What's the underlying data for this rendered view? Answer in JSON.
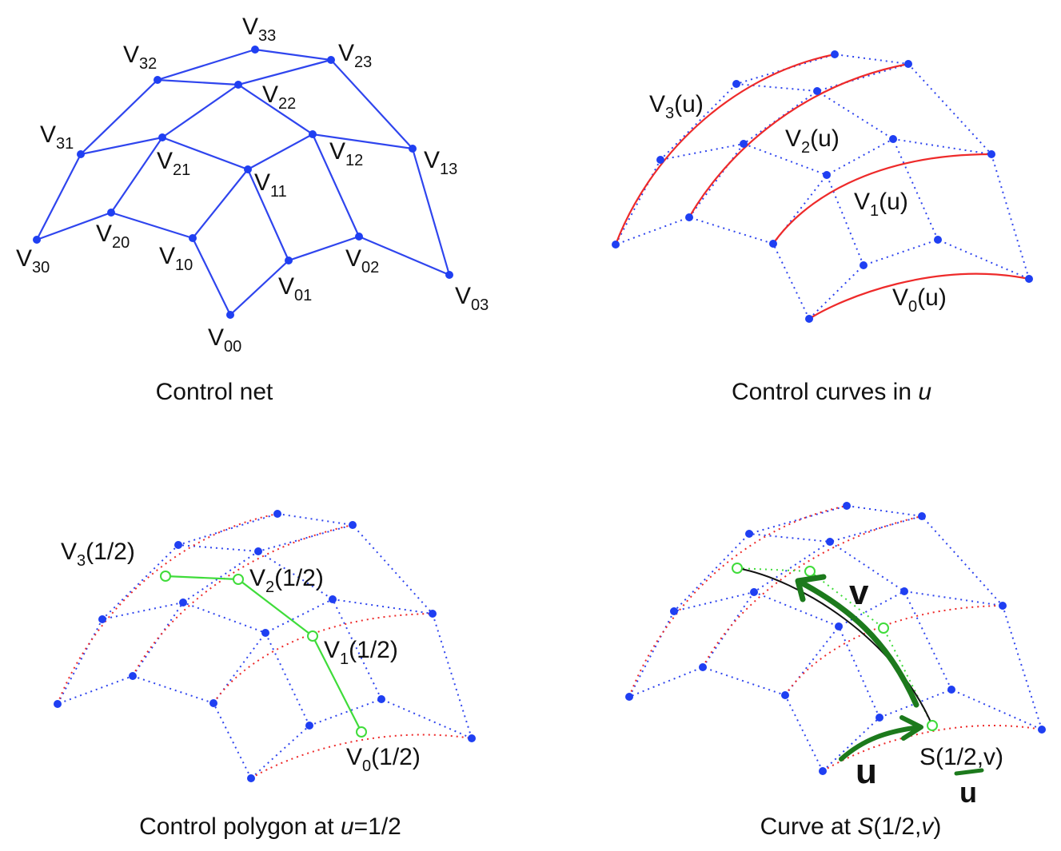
{
  "panels": {
    "control_net": {
      "caption": "Control net",
      "labels": {
        "V00": {
          "base": "V",
          "sub": "00"
        },
        "V01": {
          "base": "V",
          "sub": "01"
        },
        "V02": {
          "base": "V",
          "sub": "02"
        },
        "V03": {
          "base": "V",
          "sub": "03"
        },
        "V10": {
          "base": "V",
          "sub": "10"
        },
        "V11": {
          "base": "V",
          "sub": "11"
        },
        "V12": {
          "base": "V",
          "sub": "12"
        },
        "V13": {
          "base": "V",
          "sub": "13"
        },
        "V20": {
          "base": "V",
          "sub": "20"
        },
        "V21": {
          "base": "V",
          "sub": "21"
        },
        "V22": {
          "base": "V",
          "sub": "22"
        },
        "V23": {
          "base": "V",
          "sub": "23"
        },
        "V30": {
          "base": "V",
          "sub": "30"
        },
        "V31": {
          "base": "V",
          "sub": "31"
        },
        "V32": {
          "base": "V",
          "sub": "32"
        },
        "V33": {
          "base": "V",
          "sub": "33"
        }
      }
    },
    "control_curves": {
      "caption_text": "Control curves in ",
      "caption_var": "u",
      "labels": {
        "V3u": {
          "base": "V",
          "sub": "3",
          "rest": "(u)"
        },
        "V2u": {
          "base": "V",
          "sub": "2",
          "rest": "(u)"
        },
        "V1u": {
          "base": "V",
          "sub": "1",
          "rest": "(u)"
        },
        "V0u": {
          "base": "V",
          "sub": "0",
          "rest": "(u)"
        }
      }
    },
    "control_polygon": {
      "caption_text": "Control polygon at ",
      "caption_var": "u",
      "caption_rest": "=1/2",
      "labels": {
        "V3h": {
          "base": "V",
          "sub": "3",
          "rest": "(1/2)"
        },
        "V2h": {
          "base": "V",
          "sub": "2",
          "rest": "(1/2)"
        },
        "V1h": {
          "base": "V",
          "sub": "1",
          "rest": "(1/2)"
        },
        "V0h": {
          "base": "V",
          "sub": "0",
          "rest": "(1/2)"
        }
      }
    },
    "curve_at": {
      "caption_text": "Curve at ",
      "caption_var": "S",
      "caption_mid": "(1/2,",
      "caption_var2": "v",
      "caption_end": ")",
      "point_label": "S(1/2,v)",
      "annotations": {
        "v_mark": "v",
        "u_mark": "u",
        "u_under": "u"
      }
    }
  },
  "colors": {
    "net": "#2f45ee",
    "curve": "#ee2a2a",
    "polygon": "#3fdc3a",
    "ink": "#1c7a1c",
    "text": "#111111"
  }
}
